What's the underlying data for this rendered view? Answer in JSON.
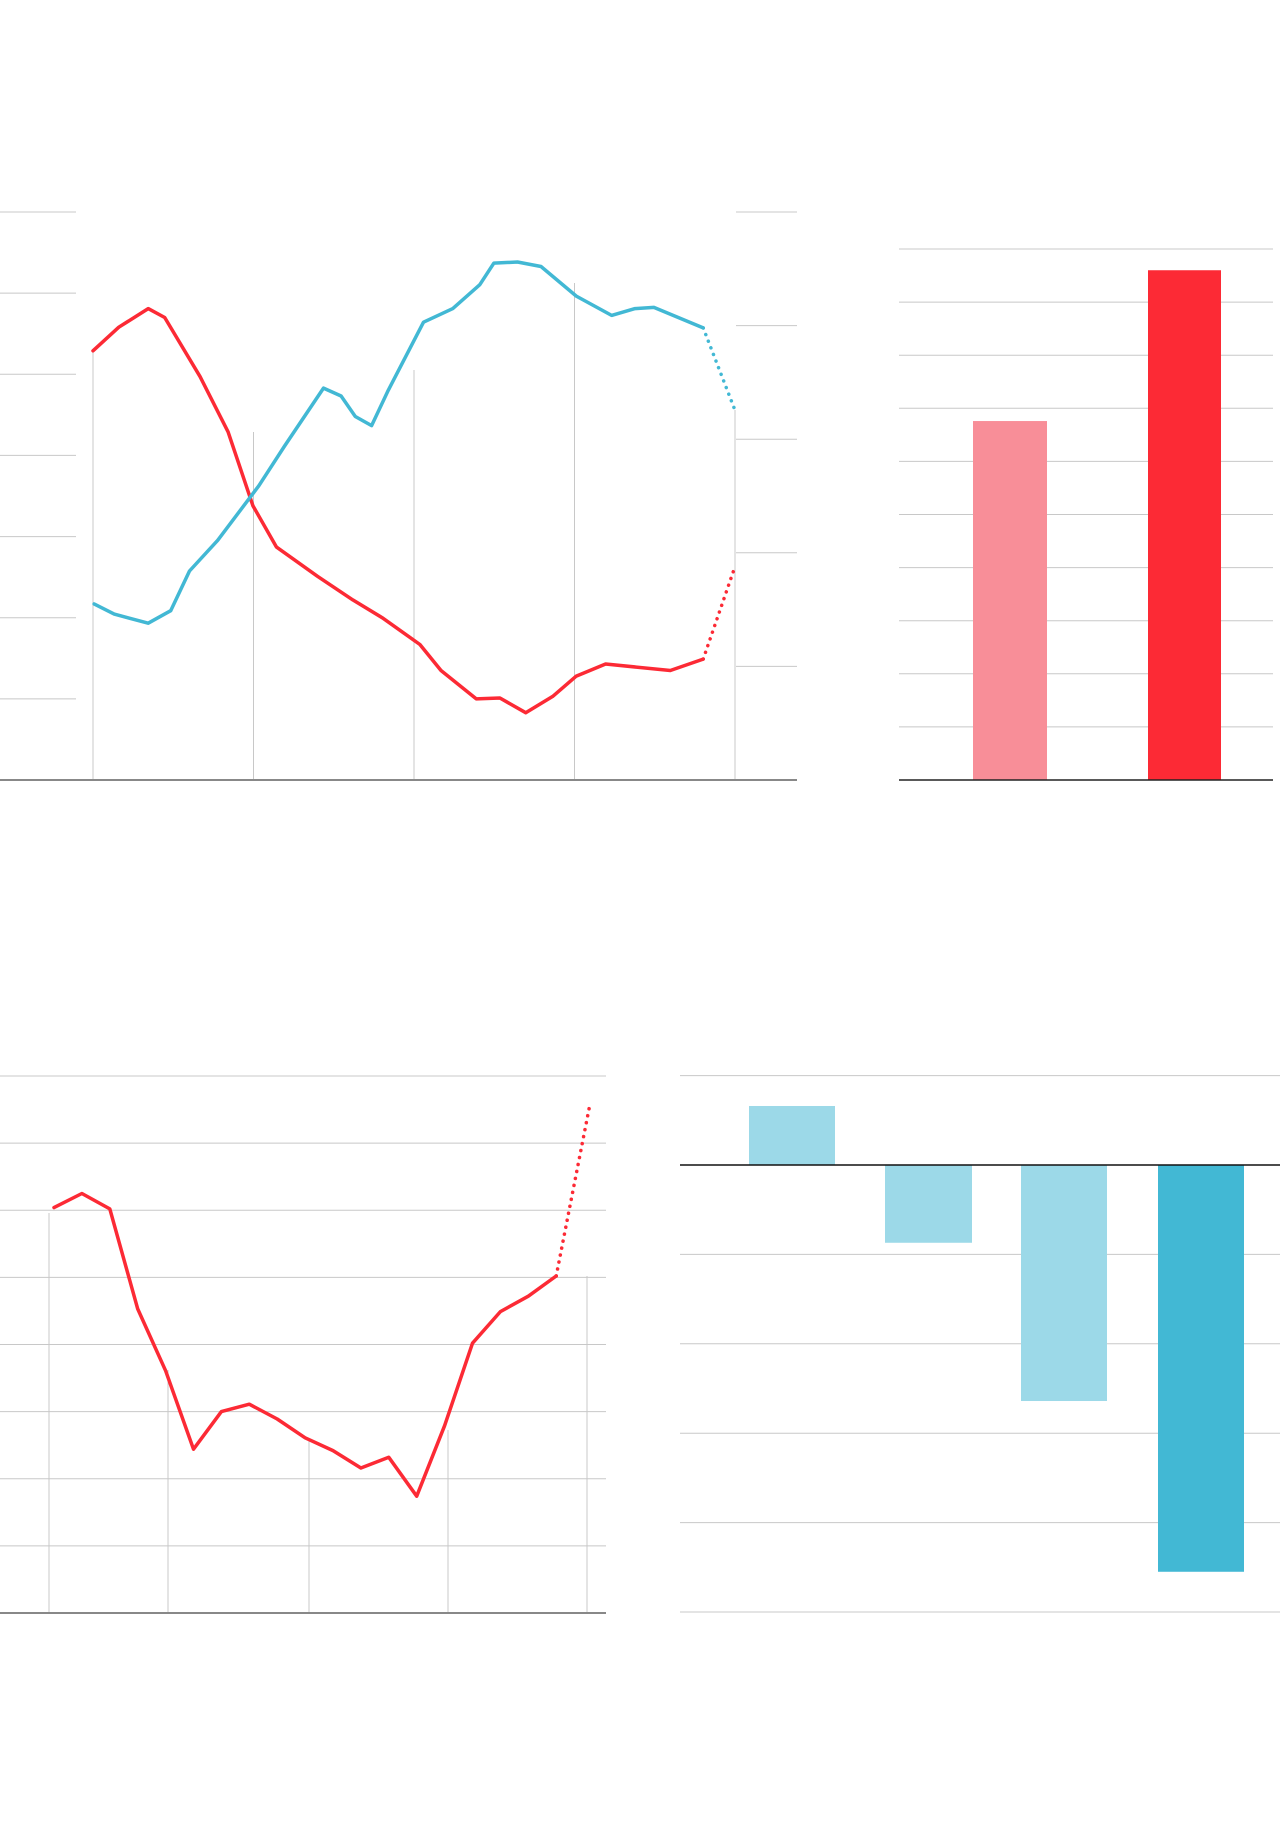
{
  "colors": {
    "red": "#fc2a35",
    "pink": "#f88e98",
    "blue": "#42b8d4",
    "light_blue": "#9cd9e8",
    "grid": "#c8c8c8",
    "axis": "#888888"
  },
  "chart_data": [
    {
      "type": "line",
      "title": "",
      "grid": true,
      "xlim": [
        0,
        4
      ],
      "ylim_left": [
        0,
        7
      ],
      "ylim_right": [
        0,
        5
      ],
      "series": [
        {
          "axis": "left",
          "color": "#fc2a35",
          "x": [
            0,
            0.161,
            0.344,
            0.447,
            0.667,
            0.842,
            0.996,
            1.143,
            1.399,
            1.619,
            1.802,
            2.037,
            2.168,
            2.388,
            2.535,
            2.696,
            2.864,
            3.011,
            3.194,
            3.597,
            3.802
          ],
          "y": [
            5.29,
            5.58,
            5.81,
            5.7,
            4.97,
            4.29,
            3.38,
            2.87,
            2.51,
            2.22,
            2.0,
            1.67,
            1.35,
            1.0,
            1.01,
            0.83,
            1.03,
            1.28,
            1.43,
            1.35,
            1.49
          ],
          "projection": {
            "x": [
              3.802,
              3.993
            ],
            "y": [
              1.49,
              2.59
            ]
          }
        },
        {
          "axis": "right",
          "color": "#42b8d4",
          "x": [
            0.007,
            0.132,
            0.344,
            0.484,
            0.601,
            0.777,
            1.033,
            1.194,
            1.436,
            1.546,
            1.634,
            1.736,
            1.839,
            2.059,
            2.242,
            2.41,
            2.498,
            2.645,
            2.791,
            3.011,
            3.231,
            3.377,
            3.495,
            3.802
          ],
          "y": [
            1.55,
            1.46,
            1.38,
            1.49,
            1.84,
            2.11,
            2.59,
            2.94,
            3.45,
            3.38,
            3.2,
            3.12,
            3.43,
            4.03,
            4.15,
            4.36,
            4.55,
            4.56,
            4.52,
            4.26,
            4.09,
            4.15,
            4.16,
            3.98
          ],
          "projection": {
            "x": [
              3.802,
              4.007
            ],
            "y": [
              3.98,
              3.23
            ]
          }
        }
      ]
    },
    {
      "type": "bar",
      "grid": true,
      "ylim": [
        0,
        10
      ],
      "values": [
        6.76,
        9.6
      ],
      "colors": [
        "#f88e98",
        "#fc2a35"
      ]
    },
    {
      "type": "line",
      "grid": true,
      "ylim": [
        0,
        8
      ],
      "xlim": [
        0,
        19
      ],
      "series": [
        {
          "color": "#fc2a35",
          "y": [
            6.04,
            6.25,
            6.02,
            4.53,
            3.61,
            2.44,
            3.0,
            3.11,
            2.89,
            2.61,
            2.42,
            2.16,
            2.32,
            1.74,
            2.79,
            4.02,
            4.49,
            4.72,
            5.02
          ],
          "projection": {
            "x": [
              18,
              19.2
            ],
            "y": [
              5.02,
              7.56
            ]
          }
        }
      ]
    },
    {
      "type": "bar",
      "grid": true,
      "ylim": [
        -5,
        1
      ],
      "values": [
        0.66,
        -0.87,
        -2.64,
        -4.55
      ],
      "colors": [
        "#9cd9e8",
        "#9cd9e8",
        "#9cd9e8",
        "#42b8d4"
      ]
    }
  ]
}
